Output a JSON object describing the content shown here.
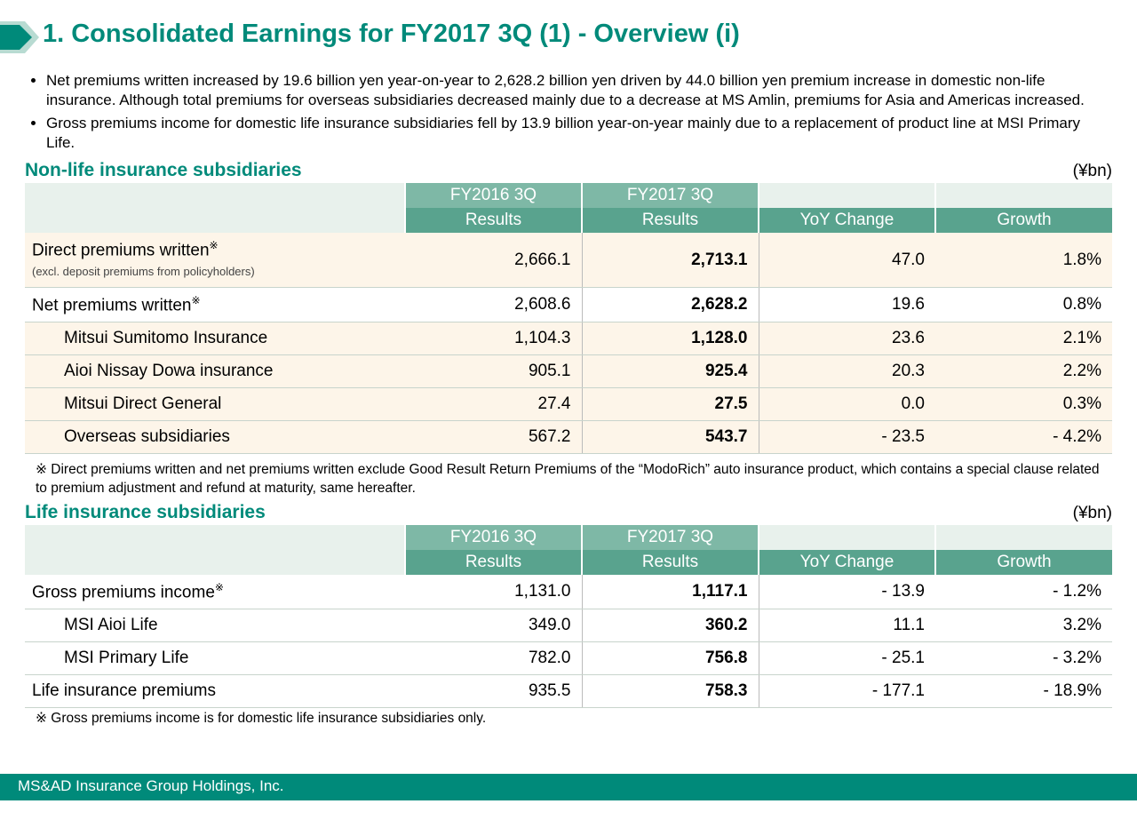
{
  "title": "1. Consolidated Earnings for FY2017 3Q (1) - Overview (i)",
  "chevron": {
    "fill": "#008a7a",
    "bg": "#b8dbd2"
  },
  "bullets": [
    "Net premiums written increased by 19.6 billion yen year-on-year to 2,628.2 billion yen driven by 44.0 billion yen premium increase in domestic non-life insurance. Although total premiums for overseas subsidiaries decreased mainly due to a decrease at MS Amlin, premiums for Asia and Americas increased.",
    "Gross premiums income for domestic life insurance subsidiaries fell by 13.9 billion year-on-year mainly due to a replacement of product line at MSI Primary Life."
  ],
  "nonlife": {
    "title": "Non-life insurance subsidiaries",
    "unit": "(¥bn)",
    "headers": {
      "p1": "FY2016 3Q",
      "p2": "FY2017 3Q",
      "r": "Results",
      "yoy": "YoY Change",
      "g": "Growth"
    },
    "rows": [
      {
        "label": "Direct premiums written",
        "sup": "※",
        "sub": "(excl. deposit premiums from policyholders)",
        "indent": false,
        "cream": true,
        "v": [
          "2,666.1",
          "2,713.1",
          "47.0",
          "1.8%"
        ]
      },
      {
        "label": "Net premiums written",
        "sup": "※",
        "indent": false,
        "cream": false,
        "v": [
          "2,608.6",
          "2,628.2",
          "19.6",
          "0.8%"
        ]
      },
      {
        "label": "Mitsui Sumitomo Insurance",
        "indent": true,
        "cream": true,
        "v": [
          "1,104.3",
          "1,128.0",
          "23.6",
          "2.1%"
        ]
      },
      {
        "label": "Aioi Nissay Dowa insurance",
        "indent": true,
        "cream": true,
        "v": [
          "905.1",
          "925.4",
          "20.3",
          "2.2%"
        ]
      },
      {
        "label": "Mitsui Direct General",
        "indent": true,
        "cream": true,
        "v": [
          "27.4",
          "27.5",
          "0.0",
          "0.3%"
        ]
      },
      {
        "label": "Overseas subsidiaries",
        "indent": true,
        "cream": true,
        "v": [
          "567.2",
          "543.7",
          "- 23.5",
          "- 4.2%"
        ]
      }
    ],
    "note": "※ Direct premiums written and net premiums written exclude Good Result Return Premiums of the “ModoRich” auto insurance product, which contains a special clause related to premium adjustment and refund at maturity, same hereafter."
  },
  "life": {
    "title": "Life insurance subsidiaries",
    "unit": "(¥bn)",
    "headers": {
      "p1": "FY2016 3Q",
      "p2": "FY2017 3Q",
      "r": "Results",
      "yoy": "YoY Change",
      "g": "Growth"
    },
    "rows": [
      {
        "label": "Gross premiums income",
        "sup": "※",
        "indent": false,
        "cream": false,
        "v": [
          "1,131.0",
          "1,117.1",
          "- 13.9",
          "- 1.2%"
        ]
      },
      {
        "label": "MSI Aioi Life",
        "indent": true,
        "cream": false,
        "v": [
          "349.0",
          "360.2",
          "11.1",
          "3.2%"
        ]
      },
      {
        "label": "MSI Primary Life",
        "indent": true,
        "cream": false,
        "v": [
          "782.0",
          "756.8",
          "- 25.1",
          "- 3.2%"
        ]
      },
      {
        "label": "Life insurance premiums",
        "indent": false,
        "cream": false,
        "v": [
          "935.5",
          "758.3",
          "- 177.1",
          "- 18.9%"
        ]
      }
    ],
    "note": "※ Gross premiums income is for domestic life insurance subsidiaries only."
  },
  "footer": "MS&AD Insurance Group Holdings, Inc."
}
